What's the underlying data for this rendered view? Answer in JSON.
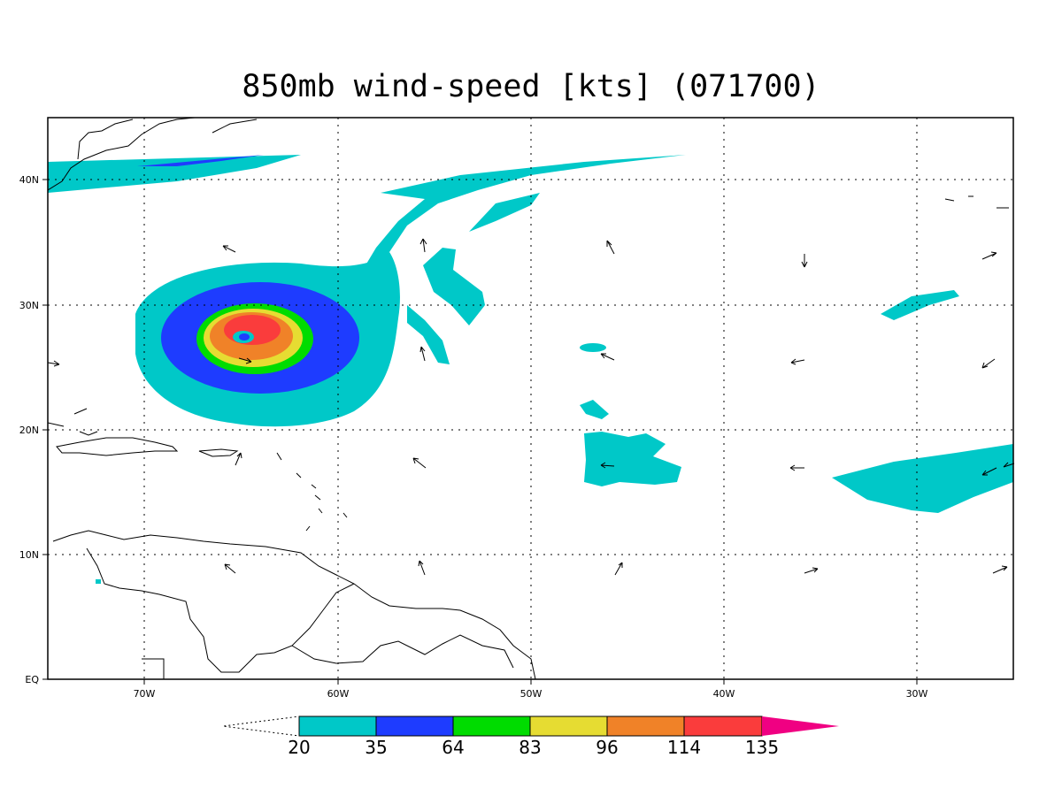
{
  "title": "850mb wind-speed [kts] (071700)",
  "axes": {
    "lon_labels": [
      "70W",
      "60W",
      "50W",
      "40W",
      "30W"
    ],
    "lat_labels": [
      "40N",
      "30N",
      "20N",
      "10N",
      "EQ"
    ]
  },
  "colorbar": {
    "levels": [
      "20",
      "35",
      "64",
      "83",
      "96",
      "114",
      "135"
    ],
    "colors": [
      "#00c8c8",
      "#1e3cff",
      "#00dc00",
      "#e6dc32",
      "#f08228",
      "#fa3c3c",
      "#f00082"
    ]
  },
  "colors": {
    "c20": "#00c8c8",
    "c35": "#1e3cff",
    "c64": "#00dc00",
    "c83": "#e6dc32",
    "c96": "#f08228",
    "c114": "#fa3c3c",
    "c135": "#f00082"
  }
}
